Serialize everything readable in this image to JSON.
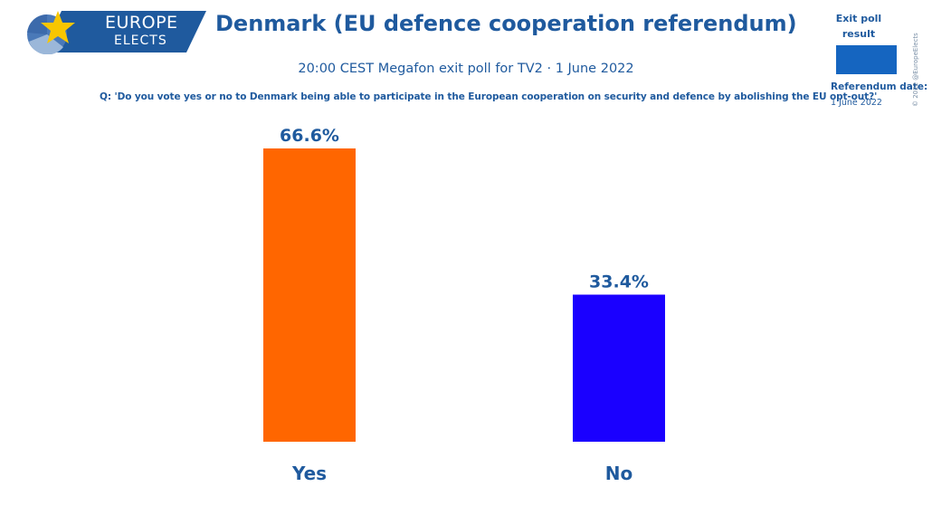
{
  "logo": {
    "line1": "EUROPE",
    "line2": "ELECTS"
  },
  "legend": {
    "title": "Exit poll result",
    "ref_label": "Referendum date:",
    "ref_date": "1 June 2022",
    "swatch_color": "#1565c0"
  },
  "copyright": "© 2022 @EuropeElects",
  "chart_data": {
    "type": "bar",
    "title": "Denmark (EU defence cooperation referendum)",
    "subtitle": "20:00 CEST Megafon exit poll for TV2 · 1 June 2022",
    "question": "Q: 'Do you vote yes or no to Denmark being able to participate in the European cooperation on security and defence by abolishing the EU opt-out?'",
    "categories": [
      "Yes",
      "No"
    ],
    "values": [
      66.6,
      33.4
    ],
    "value_labels": [
      "66.6%",
      "33.4%"
    ],
    "colors": [
      "#ff6600",
      "#1a00ff"
    ],
    "ylim": [
      0,
      66.6
    ],
    "grid": false,
    "xlabel": "",
    "ylabel": ""
  }
}
